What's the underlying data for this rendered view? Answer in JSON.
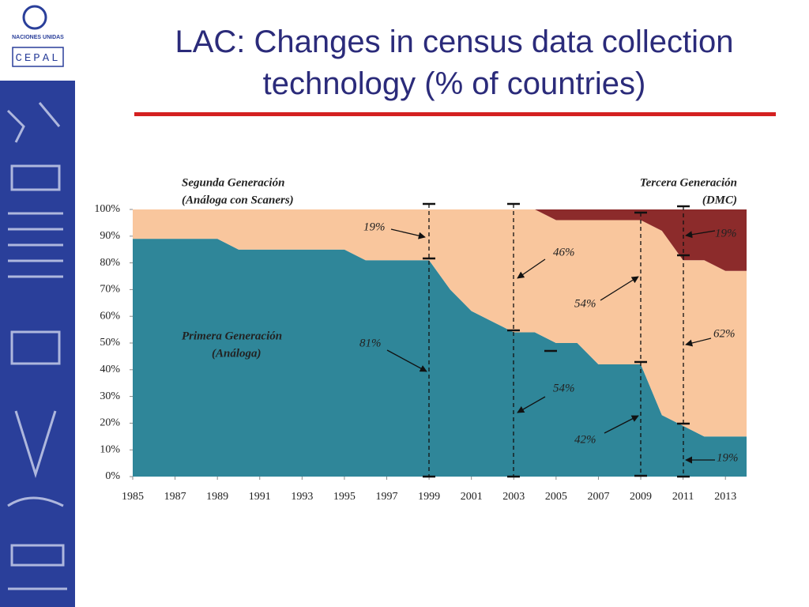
{
  "logo": {
    "org": "NACIONES UNIDAS",
    "name": "CEPAL"
  },
  "chart_data": {
    "type": "stacked_area",
    "title": "LAC: Changes in census data collection technology (% of countries)",
    "x": [
      1985,
      1986,
      1987,
      1988,
      1989,
      1990,
      1991,
      1992,
      1993,
      1994,
      1995,
      1996,
      1997,
      1998,
      1999,
      2000,
      2001,
      2002,
      2003,
      2004,
      2005,
      2006,
      2007,
      2008,
      2009,
      2010,
      2011,
      2012,
      2013,
      2014
    ],
    "series": [
      {
        "name": "Primera Generación (Análoga)",
        "color": "#2f8699",
        "values": [
          89,
          89,
          89,
          89,
          89,
          85,
          85,
          85,
          85,
          85,
          85,
          81,
          81,
          81,
          81,
          70,
          62,
          58,
          54,
          54,
          50,
          50,
          42,
          42,
          42,
          23,
          19,
          15,
          15,
          15
        ]
      },
      {
        "name": "Segunda Generación (Análoga con Scaners)",
        "color": "#f9c69d",
        "values": [
          11,
          11,
          11,
          11,
          11,
          15,
          15,
          15,
          15,
          15,
          15,
          19,
          19,
          19,
          19,
          30,
          38,
          42,
          46,
          46,
          46,
          46,
          54,
          54,
          54,
          69,
          62,
          66,
          62,
          62
        ]
      },
      {
        "name": "Tercera Generación (DMC)",
        "color": "#8c2b2b",
        "values": [
          0,
          0,
          0,
          0,
          0,
          0,
          0,
          0,
          0,
          0,
          0,
          0,
          0,
          0,
          0,
          0,
          0,
          0,
          0,
          0,
          4,
          4,
          4,
          4,
          4,
          8,
          19,
          19,
          23,
          23
        ]
      }
    ],
    "xlim": [
      1985,
      2014
    ],
    "xticks": [
      1985,
      1987,
      1989,
      1991,
      1993,
      1995,
      1997,
      1999,
      2001,
      2003,
      2005,
      2007,
      2009,
      2011,
      2013
    ],
    "ylim": [
      0,
      100
    ],
    "yticks": [
      {
        "value": 0,
        "label": "0%"
      },
      {
        "value": 10,
        "label": "10%"
      },
      {
        "value": 20,
        "label": "20%"
      },
      {
        "value": 30,
        "label": "30%"
      },
      {
        "value": 40,
        "label": "40%"
      },
      {
        "value": 50,
        "label": "50%"
      },
      {
        "value": 60,
        "label": "60%"
      },
      {
        "value": 70,
        "label": "70%"
      },
      {
        "value": 80,
        "label": "80%"
      },
      {
        "value": 90,
        "label": "90%"
      },
      {
        "value": 100,
        "label": "100%"
      }
    ],
    "annotations": [
      "Segunda Generación",
      "(Análoga con Scaners)",
      "Tercera Generación",
      "(DMC)",
      "Primera Generación",
      "(Análoga)",
      "19%",
      "46%",
      "81%",
      "54%",
      "54%",
      "42%",
      "62%",
      "19%",
      "19%"
    ]
  }
}
